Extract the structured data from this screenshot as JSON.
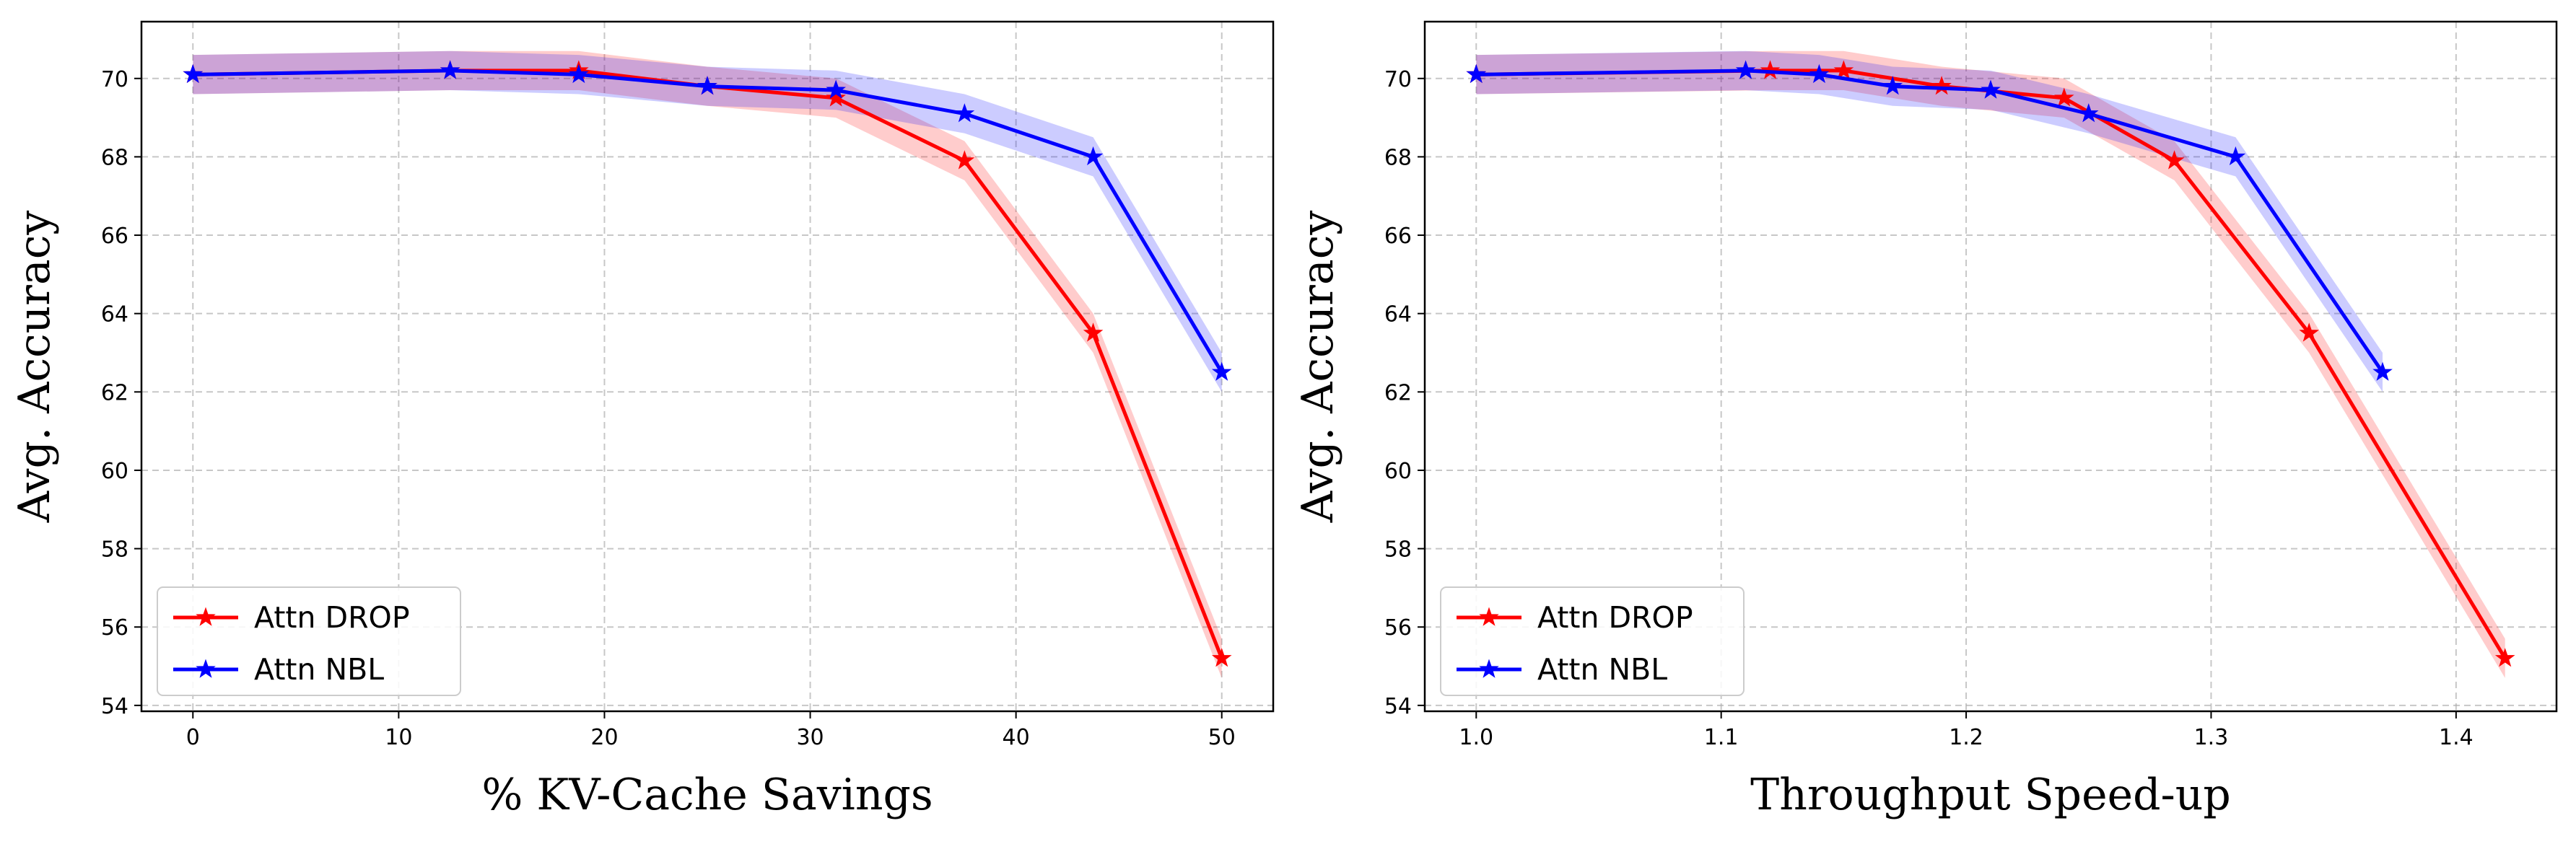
{
  "chart_data": [
    {
      "type": "line",
      "title": "",
      "xlabel": "% KV-Cache Savings",
      "ylabel": "Avg. Accuracy",
      "xlim": [
        -2.5,
        52.5
      ],
      "ylim": [
        53.85,
        71.45
      ],
      "xticks": [
        0,
        10,
        20,
        30,
        40,
        50
      ],
      "xtick_labels": [
        "0",
        "10",
        "20",
        "30",
        "40",
        "50"
      ],
      "yticks": [
        54,
        56,
        58,
        60,
        62,
        64,
        66,
        68,
        70
      ],
      "ytick_labels": [
        "54",
        "56",
        "58",
        "60",
        "62",
        "64",
        "66",
        "68",
        "70"
      ],
      "grid": true,
      "legend_position": "lower-left",
      "series": [
        {
          "name": "Attn DROP",
          "color": "#ff0000",
          "marker": "star",
          "x": [
            0,
            12.5,
            18.75,
            25,
            31.25,
            37.5,
            43.75,
            50
          ],
          "y": [
            70.1,
            70.2,
            70.2,
            69.8,
            69.5,
            67.9,
            63.5,
            55.2
          ],
          "band": 0.5
        },
        {
          "name": "Attn NBL",
          "color": "#0000ff",
          "marker": "star",
          "x": [
            0,
            12.5,
            18.75,
            25,
            31.25,
            37.5,
            43.75,
            50
          ],
          "y": [
            70.1,
            70.2,
            70.1,
            69.8,
            69.7,
            69.1,
            68.0,
            62.5
          ],
          "band": 0.5
        }
      ]
    },
    {
      "type": "line",
      "title": "",
      "xlabel": "Throughput Speed-up",
      "ylabel": "Avg. Accuracy",
      "xlim": [
        0.979,
        1.441
      ],
      "ylim": [
        53.85,
        71.45
      ],
      "xticks": [
        1.0,
        1.1,
        1.2,
        1.3,
        1.4
      ],
      "xtick_labels": [
        "1.0",
        "1.1",
        "1.2",
        "1.3",
        "1.4"
      ],
      "yticks": [
        54,
        56,
        58,
        60,
        62,
        64,
        66,
        68,
        70
      ],
      "ytick_labels": [
        "54",
        "56",
        "58",
        "60",
        "62",
        "64",
        "66",
        "68",
        "70"
      ],
      "grid": true,
      "legend_position": "lower-left",
      "series": [
        {
          "name": "Attn DROP",
          "color": "#ff0000",
          "marker": "star",
          "x": [
            1.0,
            1.12,
            1.15,
            1.19,
            1.24,
            1.285,
            1.34,
            1.42
          ],
          "y": [
            70.1,
            70.2,
            70.2,
            69.8,
            69.5,
            67.9,
            63.5,
            55.2
          ],
          "band": 0.5
        },
        {
          "name": "Attn NBL",
          "color": "#0000ff",
          "marker": "star",
          "x": [
            1.0,
            1.11,
            1.14,
            1.17,
            1.21,
            1.25,
            1.31,
            1.37
          ],
          "y": [
            70.1,
            70.2,
            70.1,
            69.8,
            69.7,
            69.1,
            68.0,
            62.5
          ],
          "band": 0.5
        }
      ]
    }
  ]
}
